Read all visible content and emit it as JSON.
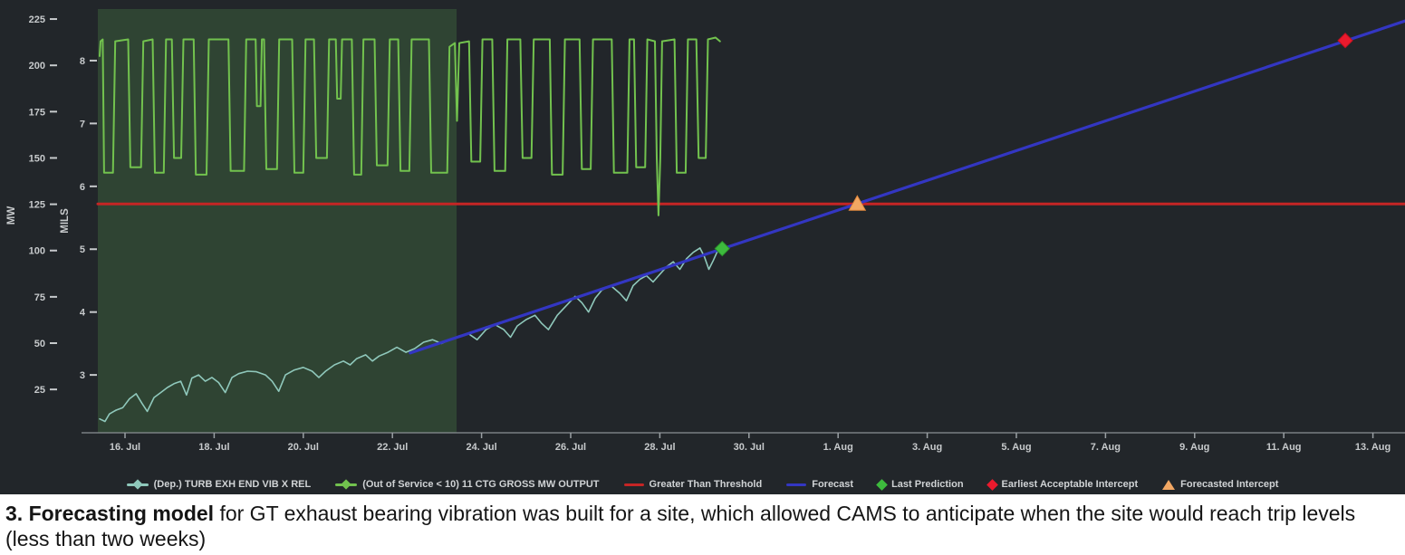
{
  "caption": {
    "bold": "3. Forecasting model",
    "rest": " for GT exhaust bearing vibration was built for a site, which allowed CAMS to anticipate when the site would reach trip levels (less than two weeks)"
  },
  "chart_data": {
    "type": "line",
    "title": "",
    "background_color": "#22262a",
    "x_axis": {
      "domain_days_from_jul16": [
        -0.61,
        28.72
      ],
      "ticks": [
        {
          "t": 0,
          "label": "16. Jul"
        },
        {
          "t": 2,
          "label": "18. Jul"
        },
        {
          "t": 4,
          "label": "20. Jul"
        },
        {
          "t": 6,
          "label": "22. Jul"
        },
        {
          "t": 8,
          "label": "24. Jul"
        },
        {
          "t": 10,
          "label": "26. Jul"
        },
        {
          "t": 12,
          "label": "28. Jul"
        },
        {
          "t": 14,
          "label": "30. Jul"
        },
        {
          "t": 16,
          "label": "1. Aug"
        },
        {
          "t": 18,
          "label": "3. Aug"
        },
        {
          "t": 20,
          "label": "5. Aug"
        },
        {
          "t": 22,
          "label": "7. Aug"
        },
        {
          "t": 24,
          "label": "9. Aug"
        },
        {
          "t": 26,
          "label": "11. Aug"
        },
        {
          "t": 28,
          "label": "13. Aug"
        }
      ]
    },
    "y_axis_mw": {
      "title": "MW",
      "domain": [
        1.6,
        230.4
      ],
      "ticks": [
        25,
        50,
        75,
        100,
        125,
        150,
        175,
        200,
        225
      ]
    },
    "y_axis_mils": {
      "title": "MILS",
      "domain": [
        2.08,
        8.82
      ],
      "ticks": [
        3,
        4,
        5,
        6,
        7,
        8
      ]
    },
    "out_of_service_shading": {
      "t_start": -0.61,
      "t_end": 7.44,
      "color": "rgba(84,150,78,0.27)"
    },
    "threshold_mils": 5.72,
    "series": [
      {
        "name": "(Dep.) TURB EXH END VIB X REL",
        "axis": "mils",
        "color": "#8fc8bb",
        "width": 1.6,
        "points": [
          [
            -0.57,
            2.3
          ],
          [
            -0.45,
            2.26
          ],
          [
            -0.35,
            2.38
          ],
          [
            -0.2,
            2.44
          ],
          [
            -0.05,
            2.48
          ],
          [
            0.1,
            2.62
          ],
          [
            0.25,
            2.7
          ],
          [
            0.38,
            2.55
          ],
          [
            0.5,
            2.42
          ],
          [
            0.65,
            2.64
          ],
          [
            0.8,
            2.72
          ],
          [
            0.95,
            2.8
          ],
          [
            1.1,
            2.86
          ],
          [
            1.25,
            2.9
          ],
          [
            1.38,
            2.68
          ],
          [
            1.5,
            2.95
          ],
          [
            1.65,
            3.0
          ],
          [
            1.8,
            2.9
          ],
          [
            1.95,
            2.96
          ],
          [
            2.1,
            2.88
          ],
          [
            2.25,
            2.72
          ],
          [
            2.4,
            2.96
          ],
          [
            2.55,
            3.02
          ],
          [
            2.75,
            3.06
          ],
          [
            2.95,
            3.05
          ],
          [
            3.15,
            3.0
          ],
          [
            3.3,
            2.9
          ],
          [
            3.45,
            2.74
          ],
          [
            3.6,
            3.0
          ],
          [
            3.8,
            3.08
          ],
          [
            4.0,
            3.12
          ],
          [
            4.2,
            3.06
          ],
          [
            4.35,
            2.96
          ],
          [
            4.5,
            3.06
          ],
          [
            4.7,
            3.16
          ],
          [
            4.9,
            3.22
          ],
          [
            5.05,
            3.16
          ],
          [
            5.2,
            3.26
          ],
          [
            5.4,
            3.32
          ],
          [
            5.55,
            3.22
          ],
          [
            5.7,
            3.3
          ],
          [
            5.9,
            3.36
          ],
          [
            6.1,
            3.44
          ],
          [
            6.3,
            3.36
          ],
          [
            6.5,
            3.42
          ],
          [
            6.7,
            3.52
          ],
          [
            6.9,
            3.56
          ],
          [
            7.1,
            3.5
          ],
          [
            7.3,
            3.56
          ],
          [
            7.5,
            3.62
          ],
          [
            7.7,
            3.66
          ],
          [
            7.9,
            3.56
          ],
          [
            8.1,
            3.72
          ],
          [
            8.3,
            3.8
          ],
          [
            8.5,
            3.72
          ],
          [
            8.65,
            3.6
          ],
          [
            8.8,
            3.78
          ],
          [
            9.0,
            3.88
          ],
          [
            9.2,
            3.95
          ],
          [
            9.35,
            3.82
          ],
          [
            9.5,
            3.72
          ],
          [
            9.7,
            3.95
          ],
          [
            9.9,
            4.1
          ],
          [
            10.1,
            4.25
          ],
          [
            10.25,
            4.15
          ],
          [
            10.4,
            4.0
          ],
          [
            10.55,
            4.22
          ],
          [
            10.7,
            4.35
          ],
          [
            10.9,
            4.42
          ],
          [
            11.1,
            4.3
          ],
          [
            11.25,
            4.18
          ],
          [
            11.4,
            4.42
          ],
          [
            11.55,
            4.52
          ],
          [
            11.7,
            4.58
          ],
          [
            11.85,
            4.48
          ],
          [
            12.0,
            4.6
          ],
          [
            12.15,
            4.72
          ],
          [
            12.3,
            4.8
          ],
          [
            12.45,
            4.68
          ],
          [
            12.6,
            4.85
          ],
          [
            12.75,
            4.95
          ],
          [
            12.9,
            5.02
          ],
          [
            13.0,
            4.88
          ],
          [
            13.1,
            4.68
          ],
          [
            13.2,
            4.82
          ],
          [
            13.3,
            4.98
          ],
          [
            13.4,
            5.02
          ]
        ]
      },
      {
        "name": "(Out of Service < 10) 11 CTG GROSS MW OUTPUT",
        "axis": "mw",
        "color": "#72c24e",
        "width": 2,
        "points": [
          [
            -0.57,
            205
          ],
          [
            -0.55,
            213
          ],
          [
            -0.5,
            214
          ],
          [
            -0.47,
            142
          ],
          [
            -0.27,
            142
          ],
          [
            -0.22,
            213
          ],
          [
            0.07,
            214
          ],
          [
            0.12,
            145
          ],
          [
            0.36,
            145
          ],
          [
            0.41,
            213
          ],
          [
            0.62,
            214
          ],
          [
            0.67,
            142
          ],
          [
            0.87,
            142
          ],
          [
            0.92,
            214
          ],
          [
            1.05,
            214
          ],
          [
            1.1,
            150
          ],
          [
            1.26,
            150
          ],
          [
            1.31,
            214
          ],
          [
            1.54,
            214
          ],
          [
            1.59,
            141
          ],
          [
            1.83,
            141
          ],
          [
            1.88,
            214
          ],
          [
            2.32,
            214
          ],
          [
            2.37,
            143
          ],
          [
            2.67,
            143
          ],
          [
            2.72,
            214
          ],
          [
            2.93,
            214
          ],
          [
            2.96,
            178
          ],
          [
            3.04,
            178
          ],
          [
            3.07,
            214
          ],
          [
            3.12,
            214
          ],
          [
            3.17,
            144
          ],
          [
            3.41,
            144
          ],
          [
            3.46,
            214
          ],
          [
            3.75,
            214
          ],
          [
            3.8,
            142
          ],
          [
            4.0,
            142
          ],
          [
            4.05,
            214
          ],
          [
            4.24,
            214
          ],
          [
            4.29,
            150
          ],
          [
            4.53,
            150
          ],
          [
            4.58,
            214
          ],
          [
            4.73,
            214
          ],
          [
            4.76,
            182
          ],
          [
            4.84,
            182
          ],
          [
            4.87,
            214
          ],
          [
            5.09,
            214
          ],
          [
            5.14,
            141
          ],
          [
            5.3,
            141
          ],
          [
            5.35,
            214
          ],
          [
            5.6,
            214
          ],
          [
            5.65,
            146
          ],
          [
            5.89,
            146
          ],
          [
            5.94,
            214
          ],
          [
            6.13,
            214
          ],
          [
            6.18,
            143
          ],
          [
            6.38,
            143
          ],
          [
            6.43,
            214
          ],
          [
            6.82,
            214
          ],
          [
            6.87,
            142
          ],
          [
            7.23,
            142
          ],
          [
            7.28,
            210
          ],
          [
            7.4,
            212
          ],
          [
            7.45,
            170
          ],
          [
            7.5,
            212
          ],
          [
            7.72,
            213
          ],
          [
            7.77,
            148
          ],
          [
            7.97,
            148
          ],
          [
            8.02,
            214
          ],
          [
            8.24,
            214
          ],
          [
            8.29,
            143
          ],
          [
            8.53,
            143
          ],
          [
            8.58,
            214
          ],
          [
            8.87,
            214
          ],
          [
            8.92,
            150
          ],
          [
            9.12,
            150
          ],
          [
            9.17,
            214
          ],
          [
            9.53,
            214
          ],
          [
            9.58,
            141
          ],
          [
            9.82,
            141
          ],
          [
            9.87,
            214
          ],
          [
            10.2,
            214
          ],
          [
            10.25,
            144
          ],
          [
            10.45,
            144
          ],
          [
            10.5,
            214
          ],
          [
            10.92,
            214
          ],
          [
            10.97,
            142
          ],
          [
            11.27,
            142
          ],
          [
            11.32,
            214
          ],
          [
            11.42,
            214
          ],
          [
            11.47,
            145
          ],
          [
            11.67,
            145
          ],
          [
            11.72,
            214
          ],
          [
            11.89,
            213
          ],
          [
            11.93,
            150
          ],
          [
            11.97,
            119
          ],
          [
            12.01,
            150
          ],
          [
            12.05,
            213
          ],
          [
            12.33,
            214
          ],
          [
            12.38,
            142
          ],
          [
            12.58,
            142
          ],
          [
            12.63,
            214
          ],
          [
            12.82,
            214
          ],
          [
            12.87,
            150
          ],
          [
            13.03,
            150
          ],
          [
            13.08,
            214
          ],
          [
            13.25,
            215
          ],
          [
            13.35,
            213
          ]
        ]
      },
      {
        "name": "Greater Than Threshold",
        "axis": "mils",
        "color": "#c52525",
        "width": 3,
        "points": [
          [
            -0.61,
            5.72
          ],
          [
            28.72,
            5.72
          ]
        ]
      },
      {
        "name": "Forecast",
        "axis": "mils",
        "color": "#3336c2",
        "width": 3.2,
        "points": [
          [
            6.4,
            3.35
          ],
          [
            28.72,
            8.63
          ]
        ]
      }
    ],
    "markers": [
      {
        "name": "Last Prediction",
        "shape": "diamond",
        "color": "#3dbb3d",
        "edge": "#2a8f2a",
        "t": 13.4,
        "value": 5.01,
        "axis": "mils"
      },
      {
        "name": "Forecasted Intercept",
        "shape": "triangle",
        "color": "#f2a763",
        "edge": "#e2883c",
        "t": 16.43,
        "value": 5.72,
        "axis": "mils"
      },
      {
        "name": "Earliest Acceptable Intercept",
        "shape": "diamond",
        "color": "#ea1a2d",
        "edge": "#c01020",
        "t": 27.38,
        "value": 8.32,
        "axis": "mils"
      }
    ],
    "legend": [
      {
        "label": "(Dep.) TURB EXH END VIB X REL",
        "marker": "line-diamond",
        "color": "#8fc8bb"
      },
      {
        "label": "(Out of Service < 10) 11 CTG GROSS MW OUTPUT",
        "marker": "line-diamond",
        "color": "#72c24e"
      },
      {
        "label": "Greater Than Threshold",
        "marker": "line",
        "color": "#c52525"
      },
      {
        "label": "Forecast",
        "marker": "line",
        "color": "#3336c2"
      },
      {
        "label": "Last Prediction",
        "marker": "diamond",
        "color": "#3dbb3d"
      },
      {
        "label": "Earliest Acceptable Intercept",
        "marker": "diamond",
        "color": "#ea1a2d"
      },
      {
        "label": "Forecasted Intercept",
        "marker": "triangle",
        "color": "#f2a763"
      }
    ],
    "text_color": "#c7cacc",
    "axis_line_color": "#8a8f93"
  }
}
